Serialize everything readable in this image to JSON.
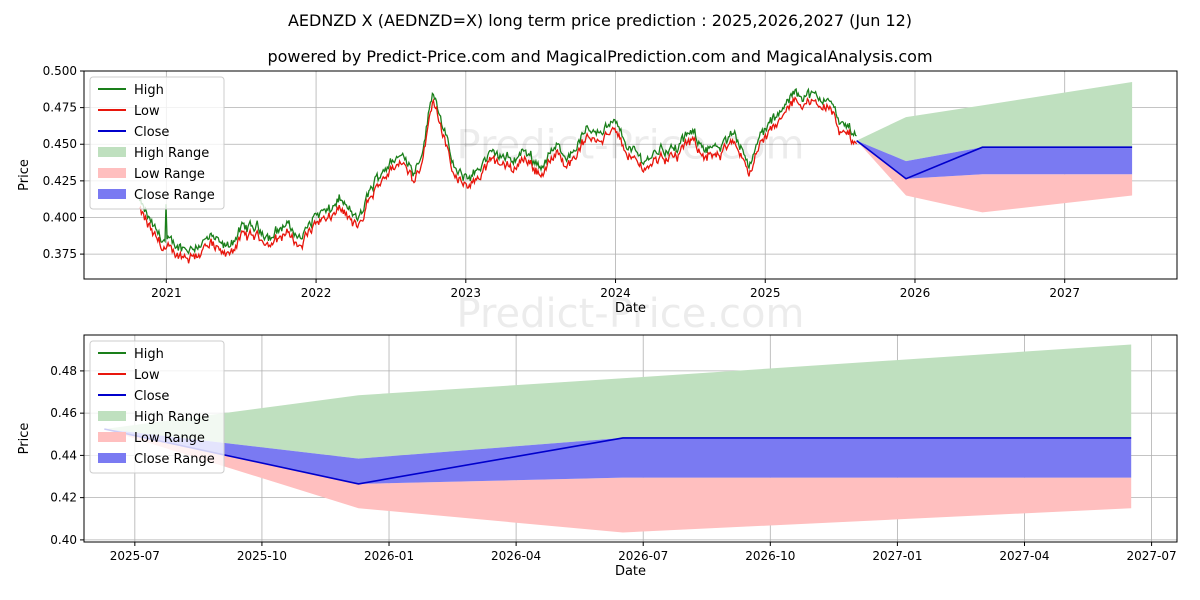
{
  "title_line1": "AEDNZD X (AEDNZD=X) long term price prediction : 2025,2026,2027 (Jun 12)",
  "title_line2": "powered by Predict-Price.com and MagicalPrediction.com and MagicalAnalysis.com",
  "watermark": "Predict-Price.com",
  "colors": {
    "high": "#1a7f1a",
    "low": "#e8160c",
    "close": "#0000cc",
    "high_range": "#bfe0bf",
    "low_range": "#ffbfbf",
    "close_range": "#7a7af2"
  },
  "legend": [
    "High",
    "Low",
    "Close",
    "High Range",
    "Low Range",
    "Close Range"
  ],
  "chart_data": [
    {
      "type": "line",
      "xlabel": "Date",
      "ylabel": "Price",
      "xlim": [
        2020.45,
        2027.75
      ],
      "ylim": [
        0.358,
        0.5
      ],
      "x_ticks": [
        2021,
        2022,
        2023,
        2024,
        2025,
        2026,
        2027
      ],
      "x_tick_labels": [
        "2021",
        "2022",
        "2023",
        "2024",
        "2025",
        "2026",
        "2027"
      ],
      "y_ticks": [
        0.375,
        0.4,
        0.425,
        0.45,
        0.475,
        0.5
      ],
      "y_tick_labels": [
        "0.375",
        "0.400",
        "0.425",
        "0.450",
        "0.475",
        "0.500"
      ],
      "history_anchors": [
        [
          2020.82,
          0.408
        ],
        [
          2020.92,
          0.389
        ],
        [
          2021.0,
          0.38
        ],
        [
          2021.15,
          0.376
        ],
        [
          2021.3,
          0.383
        ],
        [
          2021.4,
          0.376
        ],
        [
          2021.5,
          0.389
        ],
        [
          2021.6,
          0.391
        ],
        [
          2021.7,
          0.384
        ],
        [
          2021.8,
          0.393
        ],
        [
          2021.9,
          0.383
        ],
        [
          2022.0,
          0.4
        ],
        [
          2022.1,
          0.401
        ],
        [
          2022.15,
          0.411
        ],
        [
          2022.25,
          0.398
        ],
        [
          2022.3,
          0.397
        ],
        [
          2022.35,
          0.414
        ],
        [
          2022.45,
          0.431
        ],
        [
          2022.55,
          0.438
        ],
        [
          2022.6,
          0.44
        ],
        [
          2022.65,
          0.428
        ],
        [
          2022.72,
          0.447
        ],
        [
          2022.78,
          0.485
        ],
        [
          2022.83,
          0.468
        ],
        [
          2022.9,
          0.438
        ],
        [
          2022.95,
          0.425
        ],
        [
          2023.05,
          0.426
        ],
        [
          2023.12,
          0.436
        ],
        [
          2023.2,
          0.441
        ],
        [
          2023.3,
          0.436
        ],
        [
          2023.4,
          0.443
        ],
        [
          2023.5,
          0.432
        ],
        [
          2023.6,
          0.445
        ],
        [
          2023.7,
          0.44
        ],
        [
          2023.8,
          0.456
        ],
        [
          2023.9,
          0.458
        ],
        [
          2024.0,
          0.461
        ],
        [
          2024.1,
          0.444
        ],
        [
          2024.2,
          0.436
        ],
        [
          2024.3,
          0.445
        ],
        [
          2024.4,
          0.443
        ],
        [
          2024.5,
          0.455
        ],
        [
          2024.6,
          0.446
        ],
        [
          2024.7,
          0.443
        ],
        [
          2024.8,
          0.456
        ],
        [
          2024.9,
          0.433
        ],
        [
          2024.98,
          0.456
        ],
        [
          2025.1,
          0.468
        ],
        [
          2025.2,
          0.483
        ],
        [
          2025.3,
          0.481
        ],
        [
          2025.38,
          0.476
        ],
        [
          2025.42,
          0.482
        ],
        [
          2025.5,
          0.46
        ],
        [
          2025.55,
          0.461
        ],
        [
          2025.61,
          0.452
        ]
      ],
      "close_forecast": [
        [
          2025.61,
          0.4525
        ],
        [
          2025.94,
          0.4265
        ],
        [
          2026.45,
          0.448
        ],
        [
          2027.45,
          0.448
        ]
      ],
      "high_range_upper": [
        [
          2025.61,
          0.4525
        ],
        [
          2025.94,
          0.4685
        ],
        [
          2026.45,
          0.4765
        ],
        [
          2027.45,
          0.4925
        ]
      ],
      "high_range_lower": [
        [
          2025.61,
          0.4525
        ],
        [
          2025.94,
          0.4385
        ],
        [
          2026.45,
          0.448
        ],
        [
          2027.45,
          0.448
        ]
      ],
      "low_range_upper": [
        [
          2025.61,
          0.4525
        ],
        [
          2025.94,
          0.4265
        ],
        [
          2026.45,
          0.4295
        ],
        [
          2027.45,
          0.4295
        ]
      ],
      "low_range_lower": [
        [
          2025.61,
          0.4525
        ],
        [
          2025.94,
          0.415
        ],
        [
          2026.45,
          0.4035
        ],
        [
          2027.45,
          0.415
        ]
      ],
      "close_range_upper": [
        [
          2025.61,
          0.4525
        ],
        [
          2025.94,
          0.4385
        ],
        [
          2026.45,
          0.448
        ],
        [
          2027.45,
          0.448
        ]
      ],
      "close_range_lower": [
        [
          2025.61,
          0.4525
        ],
        [
          2025.94,
          0.4265
        ],
        [
          2026.45,
          0.4295
        ],
        [
          2027.45,
          0.4295
        ]
      ]
    },
    {
      "type": "area",
      "xlabel": "Date",
      "ylabel": "Price",
      "xlim": [
        2025.4,
        2027.55
      ],
      "ylim": [
        0.399,
        0.497
      ],
      "x_ticks": [
        2025.5,
        2025.75,
        2026.0,
        2026.25,
        2026.5,
        2026.75,
        2027.0,
        2027.25,
        2027.5
      ],
      "x_tick_labels": [
        "2025-07",
        "2025-10",
        "2026-01",
        "2026-04",
        "2026-07",
        "2026-10",
        "2027-01",
        "2027-04",
        "2027-07"
      ],
      "y_ticks": [
        0.4,
        0.42,
        0.44,
        0.46,
        0.48
      ],
      "y_tick_labels": [
        "0.40",
        "0.42",
        "0.44",
        "0.46",
        "0.48"
      ],
      "close_forecast": [
        [
          2025.44,
          0.4525
        ],
        [
          2025.94,
          0.4265
        ],
        [
          2026.46,
          0.4483
        ],
        [
          2027.46,
          0.4483
        ]
      ],
      "high_range_upper": [
        [
          2025.44,
          0.4525
        ],
        [
          2025.94,
          0.4685
        ],
        [
          2026.46,
          0.4765
        ],
        [
          2027.46,
          0.4925
        ]
      ],
      "high_range_lower": [
        [
          2025.44,
          0.4525
        ],
        [
          2025.94,
          0.4385
        ],
        [
          2026.46,
          0.4483
        ],
        [
          2027.46,
          0.4483
        ]
      ],
      "low_range_upper": [
        [
          2025.44,
          0.4525
        ],
        [
          2025.94,
          0.4265
        ],
        [
          2026.46,
          0.4295
        ],
        [
          2027.46,
          0.4295
        ]
      ],
      "low_range_lower": [
        [
          2025.44,
          0.4525
        ],
        [
          2025.94,
          0.415
        ],
        [
          2026.46,
          0.4035
        ],
        [
          2027.46,
          0.415
        ]
      ],
      "close_range_upper": [
        [
          2025.44,
          0.4525
        ],
        [
          2025.94,
          0.4385
        ],
        [
          2026.46,
          0.4483
        ],
        [
          2027.46,
          0.4483
        ]
      ],
      "close_range_lower": [
        [
          2025.44,
          0.4525
        ],
        [
          2025.94,
          0.4265
        ],
        [
          2026.46,
          0.4295
        ],
        [
          2027.46,
          0.4295
        ]
      ]
    }
  ]
}
